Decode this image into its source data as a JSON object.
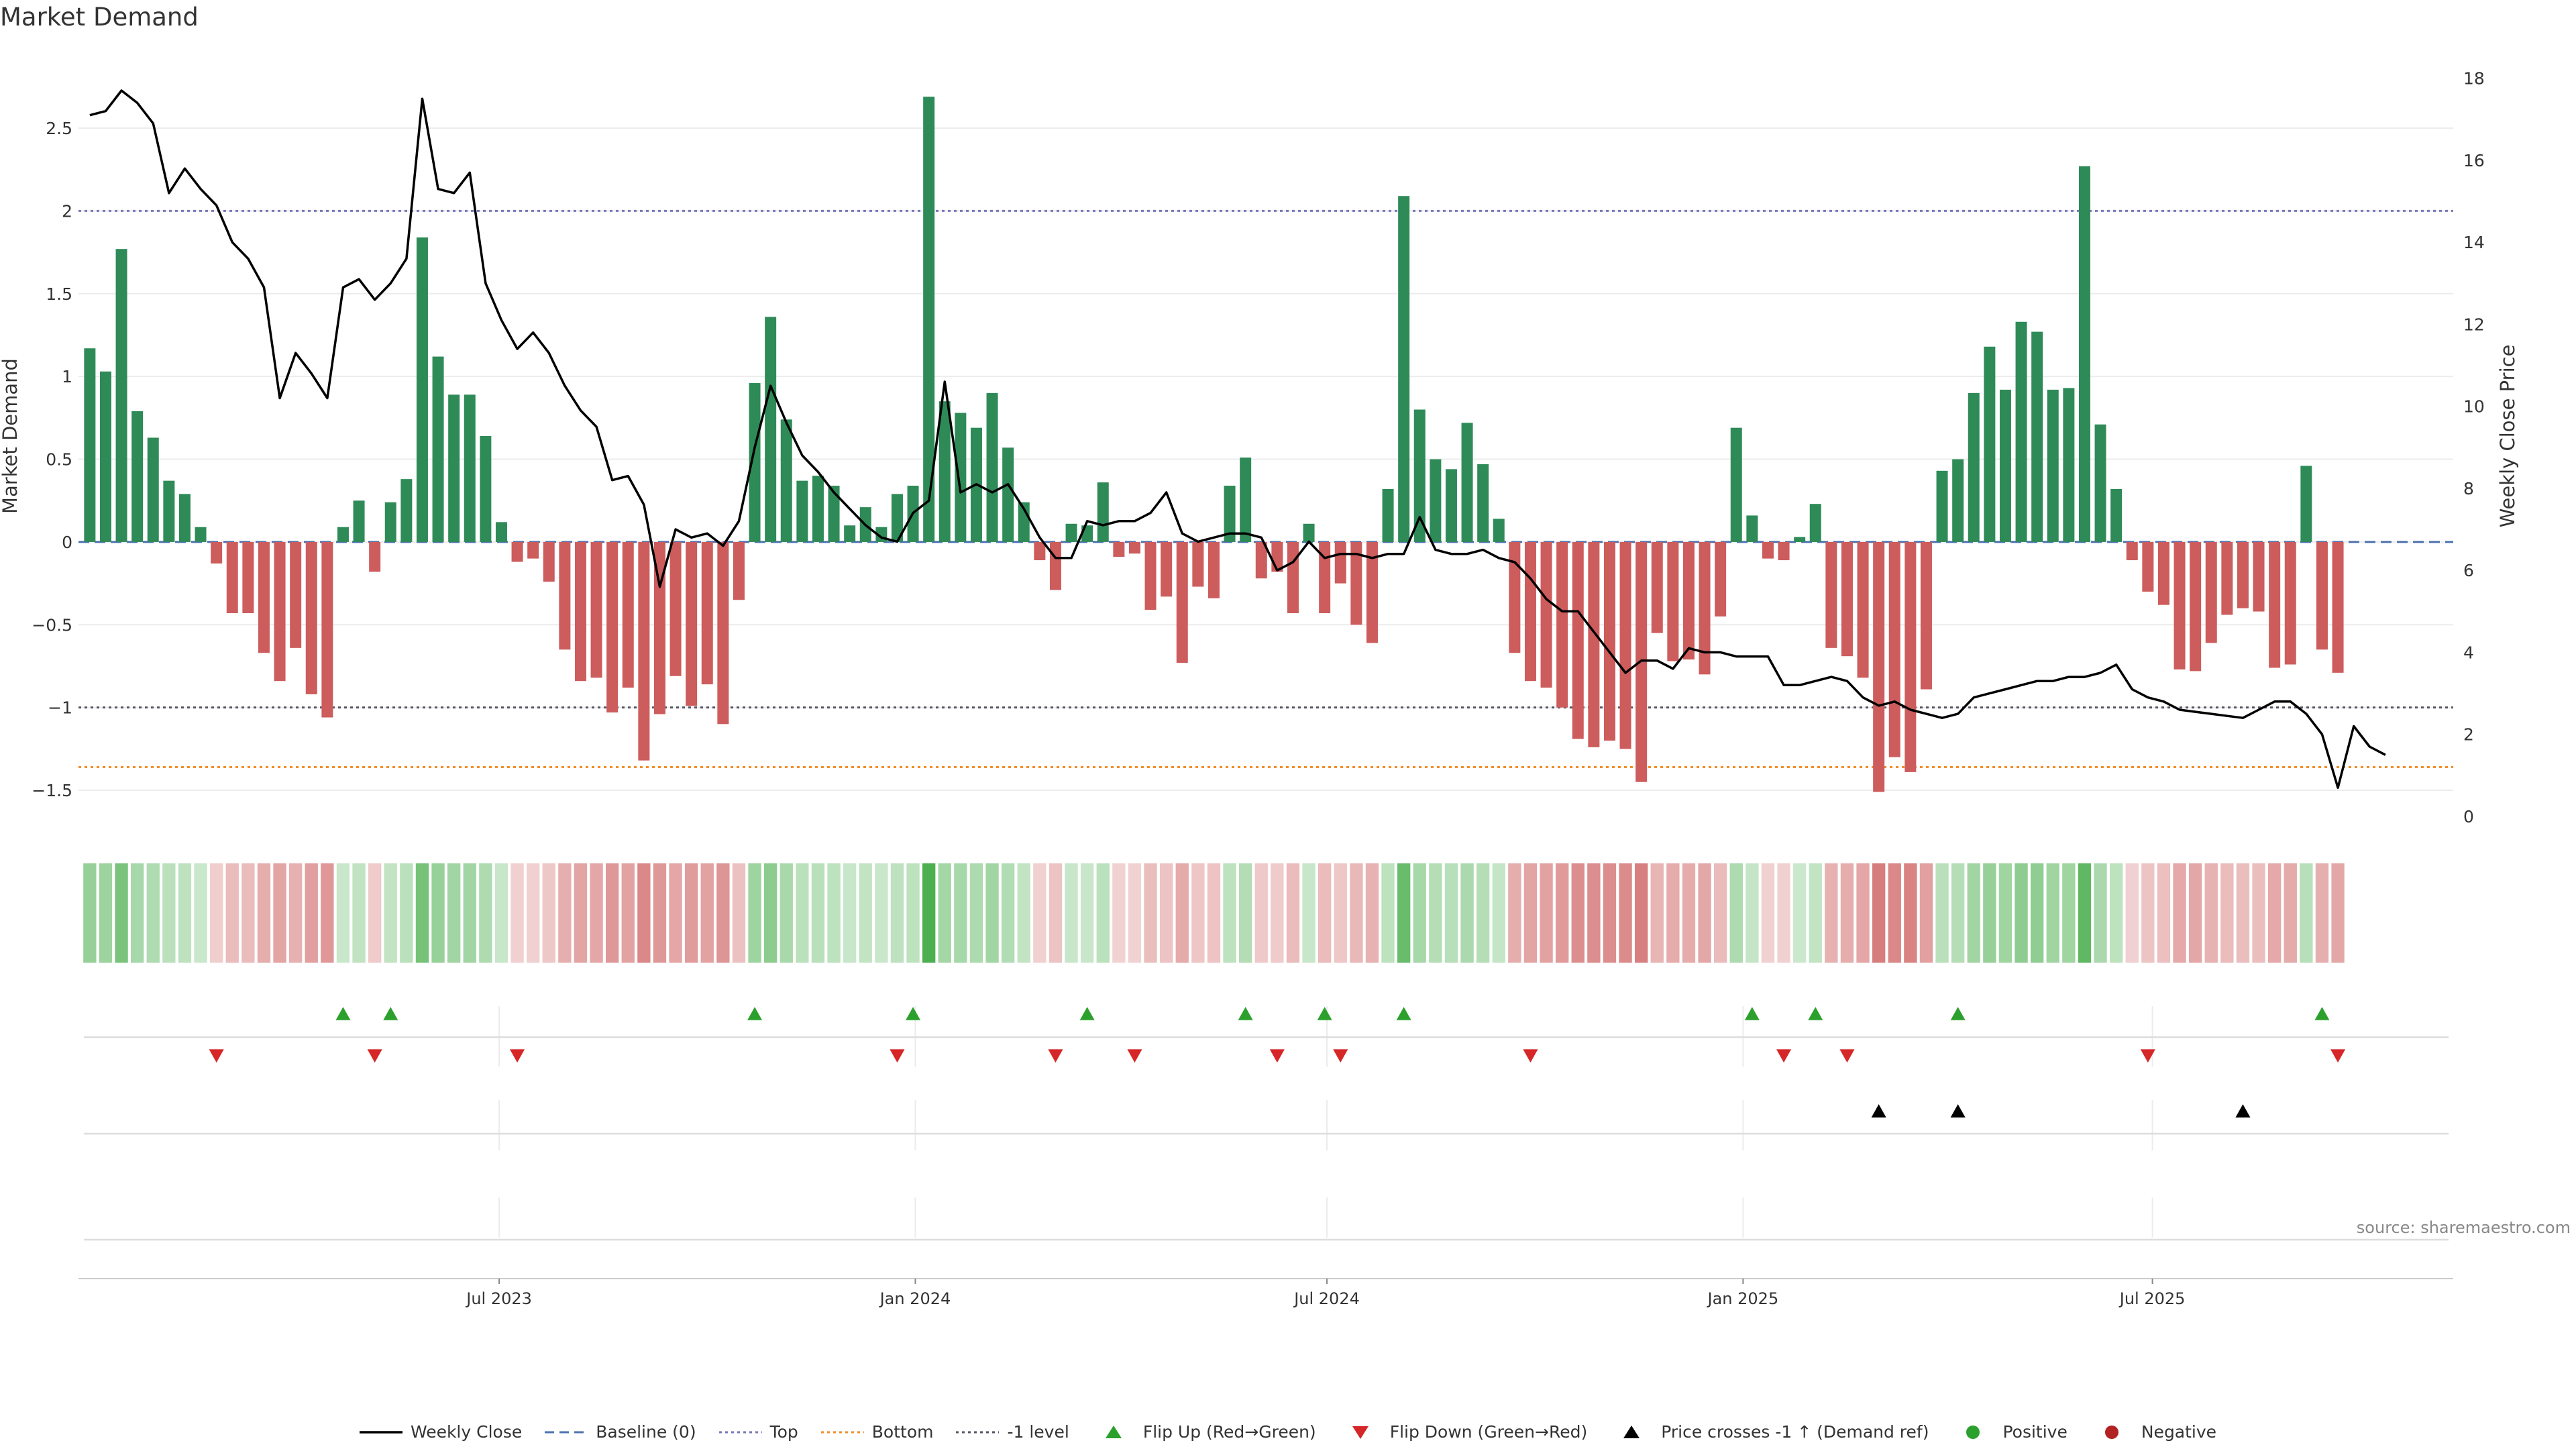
{
  "title": "Market Demand",
  "source": "source: sharemaestro.com",
  "colors": {
    "positive": "#2e8b57",
    "negative": "#cd5c5c",
    "price": "#000000",
    "top": "#7777bb",
    "bottom": "#f28e2b",
    "minus_one": "#555566",
    "baseline": "#4c72b0",
    "flip_up": "#2ca02c",
    "flip_down": "#d62728",
    "cross": "#000000"
  },
  "legend": [
    {
      "label": "Weekly Close",
      "icon": "solid-line"
    },
    {
      "label": "Baseline (0)",
      "icon": "dash-line"
    },
    {
      "label": "Top",
      "icon": "dot-line"
    },
    {
      "label": "Bottom",
      "icon": "dot-line-orange"
    },
    {
      "label": "-1 level",
      "icon": "dot-line-dark"
    },
    {
      "label": "Flip Up (Red→Green)",
      "icon": "triangle-up-green"
    },
    {
      "label": "Flip Down (Green→Red)",
      "icon": "triangle-down-red"
    },
    {
      "label": "Price crosses -1 ↑ (Demand ref)",
      "icon": "triangle-up-black"
    },
    {
      "label": "Positive",
      "icon": "dot-green"
    },
    {
      "label": "Negative",
      "icon": "dot-red"
    }
  ],
  "chart_data": {
    "type": "bar",
    "title": "Market Demand",
    "ylabel": "Market Demand",
    "y2label": "Weekly Close Price",
    "ylim": [
      -1.67,
      2.95
    ],
    "y2lim": [
      -0.05,
      18.6
    ],
    "yticks": [
      -1.5,
      -1,
      -0.5,
      0,
      0.5,
      1,
      1.5,
      2,
      2.5
    ],
    "ytick_labels": [
      "−1.5",
      "−1",
      "−0.5",
      "0",
      "0.5",
      "1",
      "1.5",
      "2",
      "2.5"
    ],
    "y2ticks": [
      0,
      2,
      4,
      6,
      8,
      10,
      12,
      14,
      16,
      18
    ],
    "xlim": [
      "2022-12-27",
      "2025-11-11"
    ],
    "xticks": [
      {
        "date": "2023-07-01",
        "label": "Jul 2023"
      },
      {
        "date": "2024-01-01",
        "label": "Jan 2024"
      },
      {
        "date": "2024-07-01",
        "label": "Jul 2024"
      },
      {
        "date": "2025-01-01",
        "label": "Jan 2025"
      },
      {
        "date": "2025-07-01",
        "label": "Jul 2025"
      }
    ],
    "grid": true,
    "legend_position": "bottom",
    "levels": {
      "top": 2.0,
      "bottom": -1.36,
      "minus_one": -1.0,
      "baseline": 0
    },
    "start_date": "2023-01-01",
    "week_step_days": 7,
    "demand": [
      1.17,
      1.03,
      1.77,
      0.79,
      0.63,
      0.37,
      0.29,
      0.09,
      -0.13,
      -0.43,
      -0.43,
      -0.67,
      -0.84,
      -0.64,
      -0.92,
      -1.06,
      0.09,
      0.25,
      -0.18,
      0.24,
      0.38,
      1.84,
      1.12,
      0.89,
      0.89,
      0.64,
      0.12,
      -0.12,
      -0.1,
      -0.24,
      -0.65,
      -0.84,
      -0.82,
      -1.03,
      -0.88,
      -1.32,
      -1.04,
      -0.81,
      -0.99,
      -0.86,
      -1.1,
      -0.35,
      0.96,
      1.36,
      0.74,
      0.37,
      0.4,
      0.34,
      0.1,
      0.21,
      0.09,
      0.29,
      0.34,
      2.69,
      0.85,
      0.78,
      0.69,
      0.9,
      0.57,
      0.24,
      -0.11,
      -0.29,
      0.11,
      0.1,
      0.36,
      -0.09,
      -0.07,
      -0.41,
      -0.33,
      -0.73,
      -0.27,
      -0.34,
      0.34,
      0.51,
      -0.22,
      -0.18,
      -0.43,
      0.11,
      -0.43,
      -0.25,
      -0.5,
      -0.61,
      0.32,
      2.09,
      0.8,
      0.5,
      0.44,
      0.72,
      0.47,
      0.14,
      -0.67,
      -0.84,
      -0.88,
      -1.0,
      -1.19,
      -1.24,
      -1.2,
      -1.25,
      -1.45,
      -0.55,
      -0.72,
      -0.71,
      -0.8,
      -0.45,
      0.69,
      0.16,
      -0.1,
      -0.11,
      0.03,
      0.23,
      -0.64,
      -0.69,
      -0.82,
      -1.51,
      -1.3,
      -1.39,
      -0.89,
      0.43,
      0.5,
      0.9,
      1.18,
      0.92,
      1.33,
      1.27,
      0.92,
      0.93,
      2.27,
      0.71,
      0.32,
      -0.11,
      -0.3,
      -0.38,
      -0.77,
      -0.78,
      -0.61,
      -0.44,
      -0.4,
      -0.42,
      -0.76,
      -0.74,
      0.46,
      -0.65,
      -0.79
    ],
    "price": [
      17.1,
      17.2,
      17.7,
      17.4,
      16.9,
      15.2,
      15.8,
      15.3,
      14.9,
      14.0,
      13.6,
      12.9,
      10.2,
      11.3,
      10.8,
      10.2,
      12.9,
      13.1,
      12.6,
      13.0,
      13.6,
      17.5,
      15.3,
      15.2,
      15.7,
      13.0,
      12.1,
      11.4,
      11.8,
      11.3,
      10.5,
      9.9,
      9.5,
      8.2,
      8.3,
      7.6,
      5.6,
      7.0,
      6.8,
      6.9,
      6.6,
      7.2,
      9.0,
      10.5,
      9.6,
      8.8,
      8.4,
      7.9,
      7.5,
      7.1,
      6.8,
      6.7,
      7.4,
      7.7,
      10.6,
      7.9,
      8.1,
      7.9,
      8.1,
      7.5,
      6.8,
      6.3,
      6.3,
      7.2,
      7.1,
      7.2,
      7.2,
      7.4,
      7.9,
      6.9,
      6.7,
      6.8,
      6.9,
      6.9,
      6.8,
      6.0,
      6.2,
      6.7,
      6.3,
      6.4,
      6.4,
      6.3,
      6.4,
      6.4,
      7.3,
      6.5,
      6.4,
      6.4,
      6.5,
      6.3,
      6.2,
      5.8,
      5.3,
      5.0,
      5.0,
      4.5,
      4.0,
      3.5,
      3.8,
      3.8,
      3.6,
      4.1,
      4.0,
      4.0,
      3.9,
      3.9,
      3.9,
      3.2,
      3.2,
      3.3,
      3.4,
      3.3,
      2.9,
      2.7,
      2.8,
      2.6,
      2.5,
      2.4,
      2.5,
      2.9,
      3.0,
      3.1,
      3.2,
      3.3,
      3.3,
      3.4,
      3.4,
      3.5,
      3.7,
      3.1,
      2.9,
      2.8,
      2.6,
      2.55,
      2.5,
      2.45,
      2.4,
      2.6,
      2.8,
      2.8,
      2.5,
      2.0,
      0.7,
      2.2,
      1.7,
      1.5
    ],
    "flip_up_weeks": [
      16,
      19,
      42,
      52,
      63,
      73,
      78,
      83,
      105,
      109,
      118,
      141
    ],
    "flip_down_weeks": [
      8,
      18,
      27,
      51,
      61,
      66,
      75,
      79,
      91,
      107,
      111,
      130,
      142
    ],
    "cross_weeks": [
      113,
      118,
      136
    ]
  }
}
